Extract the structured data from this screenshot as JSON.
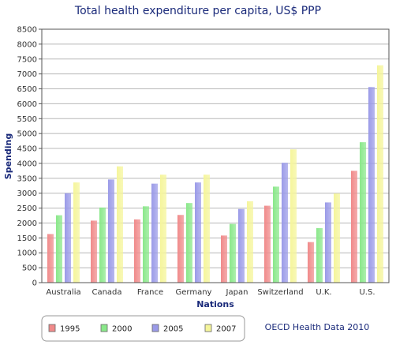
{
  "chart_data": {
    "type": "bar",
    "title": "Total health expenditure per capita, US$ PPP",
    "xlabel": "Nations",
    "ylabel": "Spending",
    "ylim": [
      0,
      8500
    ],
    "yticks": [
      0,
      500,
      1000,
      1500,
      2000,
      2500,
      3000,
      3500,
      4000,
      4500,
      5000,
      5500,
      6000,
      6500,
      7000,
      7500,
      8000,
      8500
    ],
    "categories": [
      "Australia",
      "Canada",
      "France",
      "Germany",
      "Japan",
      "Switzerland",
      "U.K.",
      "U.S."
    ],
    "series": [
      {
        "name": "1995",
        "color": "#f08a8a",
        "values": [
          1630,
          2080,
          2120,
          2270,
          1580,
          2580,
          1360,
          3750
        ]
      },
      {
        "name": "2000",
        "color": "#8ae88a",
        "values": [
          2260,
          2520,
          2560,
          2670,
          1970,
          3220,
          1830,
          4710
        ]
      },
      {
        "name": "2005",
        "color": "#9a9ae8",
        "values": [
          3000,
          3460,
          3320,
          3360,
          2470,
          4020,
          2690,
          6560
        ]
      },
      {
        "name": "2007",
        "color": "#f5f59a",
        "values": [
          3360,
          3900,
          3620,
          3620,
          2730,
          4470,
          2990,
          7290
        ]
      }
    ],
    "grid": true,
    "legend_position": "bottom-left"
  },
  "source_note": "OECD Health Data 2010"
}
